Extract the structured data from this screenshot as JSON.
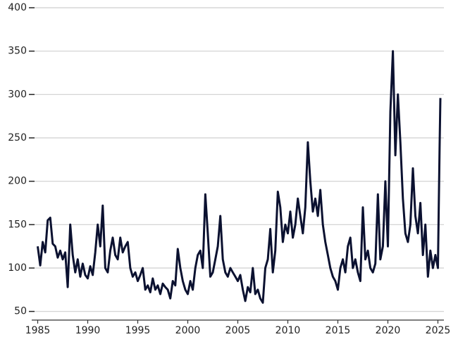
{
  "chart_data": {
    "type": "line",
    "x": [
      1985,
      1985.25,
      1985.5,
      1985.75,
      1986,
      1986.25,
      1986.5,
      1986.75,
      1987,
      1987.25,
      1987.5,
      1987.75,
      1988,
      1988.25,
      1988.5,
      1988.75,
      1989,
      1989.25,
      1989.5,
      1989.75,
      1990,
      1990.25,
      1990.5,
      1990.75,
      1991,
      1991.25,
      1991.5,
      1991.75,
      1992,
      1992.25,
      1992.5,
      1992.75,
      1993,
      1993.25,
      1993.5,
      1993.75,
      1994,
      1994.25,
      1994.5,
      1994.75,
      1995,
      1995.25,
      1995.5,
      1995.75,
      1996,
      1996.25,
      1996.5,
      1996.75,
      1997,
      1997.25,
      1997.5,
      1997.75,
      1998,
      1998.25,
      1998.5,
      1998.75,
      1999,
      1999.25,
      1999.5,
      1999.75,
      2000,
      2000.25,
      2000.5,
      2000.75,
      2001,
      2001.25,
      2001.5,
      2001.75,
      2002,
      2002.25,
      2002.5,
      2002.75,
      2003,
      2003.25,
      2003.5,
      2003.75,
      2004,
      2004.25,
      2004.5,
      2004.75,
      2005,
      2005.25,
      2005.5,
      2005.75,
      2006,
      2006.25,
      2006.5,
      2006.75,
      2007,
      2007.25,
      2007.5,
      2007.75,
      2008,
      2008.25,
      2008.5,
      2008.75,
      2009,
      2009.25,
      2009.5,
      2009.75,
      2010,
      2010.25,
      2010.5,
      2010.75,
      2011,
      2011.25,
      2011.5,
      2011.75,
      2012,
      2012.25,
      2012.5,
      2012.75,
      2013,
      2013.25,
      2013.5,
      2013.75,
      2014,
      2014.25,
      2014.5,
      2014.75,
      2015,
      2015.25,
      2015.5,
      2015.75,
      2016,
      2016.25,
      2016.5,
      2016.75,
      2017,
      2017.25,
      2017.5,
      2017.75,
      2018,
      2018.25,
      2018.5,
      2018.75,
      2019,
      2019.25,
      2019.5,
      2019.75,
      2020,
      2020.25,
      2020.5,
      2020.75,
      2021,
      2021.25,
      2021.5,
      2021.75,
      2022,
      2022.25,
      2022.5,
      2022.75,
      2023,
      2023.25,
      2023.5,
      2023.75,
      2024,
      2024.25,
      2024.5,
      2024.75,
      2025,
      2025.08,
      2025.17,
      2025.25
    ],
    "series": [
      {
        "color": "#0b1130",
        "values": [
          125,
          103,
          130,
          118,
          155,
          158,
          128,
          125,
          112,
          120,
          110,
          118,
          78,
          150,
          115,
          95,
          110,
          90,
          105,
          92,
          88,
          102,
          92,
          118,
          150,
          125,
          172,
          100,
          95,
          120,
          135,
          115,
          110,
          135,
          118,
          125,
          130,
          100,
          90,
          95,
          85,
          92,
          100,
          75,
          80,
          72,
          88,
          75,
          80,
          70,
          82,
          78,
          75,
          65,
          85,
          80,
          122,
          100,
          85,
          75,
          70,
          85,
          75,
          100,
          115,
          120,
          100,
          185,
          140,
          90,
          95,
          110,
          125,
          160,
          110,
          95,
          90,
          100,
          95,
          90,
          85,
          92,
          75,
          62,
          78,
          72,
          100,
          70,
          75,
          65,
          60,
          100,
          110,
          145,
          95,
          120,
          188,
          170,
          130,
          150,
          140,
          165,
          135,
          150,
          180,
          160,
          140,
          170,
          245,
          200,
          165,
          180,
          160,
          190,
          150,
          130,
          115,
          100,
          90,
          85,
          75,
          100,
          110,
          95,
          125,
          135,
          100,
          110,
          95,
          85,
          170,
          110,
          120,
          100,
          95,
          105,
          185,
          110,
          125,
          200,
          125,
          280,
          350,
          230,
          300,
          245,
          180,
          140,
          130,
          150,
          215,
          160,
          140,
          175,
          115,
          150,
          90,
          120,
          100,
          115,
          100,
          165,
          240,
          296
        ]
      }
    ],
    "xlim": [
      1984.4,
      2025.6
    ],
    "ylim": [
      40,
      400
    ],
    "xticks": [
      1985,
      1990,
      1995,
      2000,
      2005,
      2010,
      2015,
      2020,
      2025
    ],
    "yticks": [
      50,
      100,
      150,
      200,
      250,
      300,
      350,
      400
    ],
    "grid": true
  }
}
